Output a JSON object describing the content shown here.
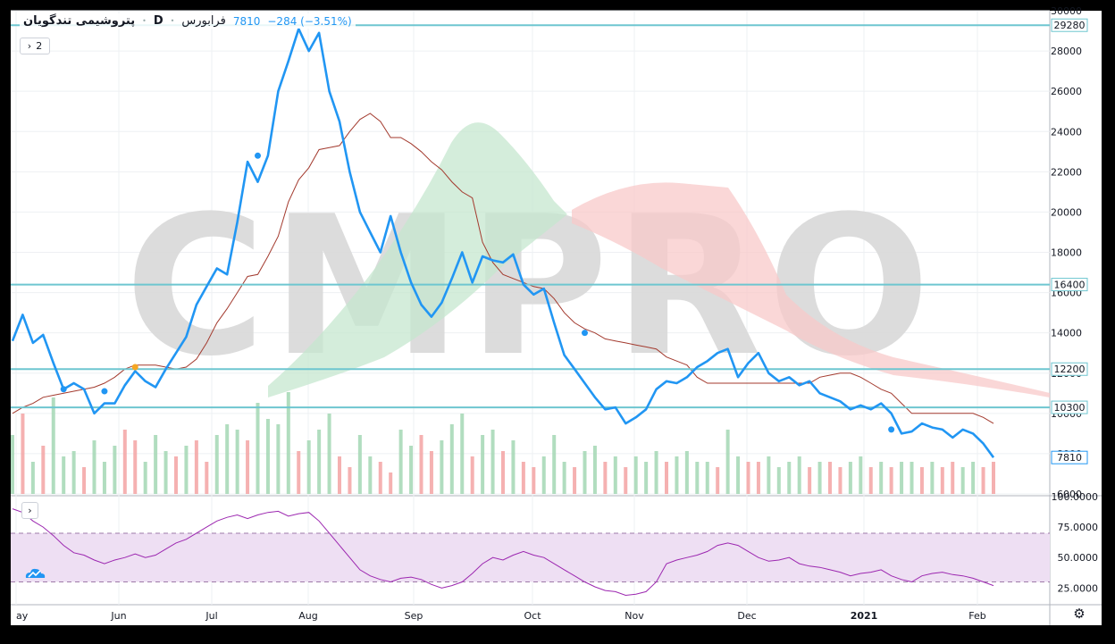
{
  "legend": {
    "symbol": "پتروشیمی تندگویان",
    "interval": "D",
    "exchange": "فرابورس",
    "last": "7810",
    "change": "−284 (−3.51%)"
  },
  "panes": {
    "main_legend_count": "2"
  },
  "watermark": "CMPRO",
  "colors": {
    "price_line": "#2196f3",
    "hline": "#6ec6d0",
    "baseline": "#a33a2e",
    "cloud_bull": "#c6e7cf",
    "cloud_bear": "#f8c9c9",
    "vol_up": "#a8d9b8",
    "vol_down": "#f4a9a9",
    "rsi_line": "#9c27b0",
    "rsi_band": "#eedff3",
    "marker_gold": "#f5a623",
    "watermark": "#d9d9d9",
    "bg": "#ffffff",
    "frame": "#000000"
  },
  "chart_data": [
    {
      "type": "line",
      "title": "",
      "x_ticks": [
        "ay",
        "Jun",
        "Jul",
        "Aug",
        "Sep",
        "Oct",
        "Nov",
        "Dec",
        "2021",
        "Feb"
      ],
      "y_ticks": [
        6000,
        8000,
        10000,
        12000,
        14000,
        16000,
        18000,
        20000,
        22000,
        24000,
        26000,
        28000,
        30000
      ],
      "ylim": [
        6000,
        30000
      ],
      "price_labels": [
        {
          "value": 29280,
          "label": "29280"
        },
        {
          "value": 16400,
          "label": "16400"
        },
        {
          "value": 12200,
          "label": "12200"
        },
        {
          "value": 10300,
          "label": "10300"
        },
        {
          "value": 7810,
          "label": "7810"
        }
      ],
      "horizontal_lines": [
        29280,
        16400,
        12200,
        10300
      ],
      "series": [
        {
          "style": "close",
          "values": [
            13600,
            14900,
            13500,
            13900,
            12500,
            11200,
            11500,
            11200,
            10000,
            10500,
            10500,
            11400,
            12100,
            11600,
            11300,
            12200,
            13000,
            13800,
            15400,
            16300,
            17200,
            16900,
            19500,
            22500,
            21500,
            22800,
            26000,
            27500,
            29100,
            28000,
            28900,
            26000,
            24500,
            22000,
            20000,
            19000,
            18000,
            19800,
            18000,
            16500,
            15400,
            14800,
            15500,
            16700,
            18000,
            16500,
            17800,
            17600,
            17500,
            17900,
            16400,
            15900,
            16200,
            14500,
            12900,
            12200,
            11500,
            10800,
            10200,
            10300,
            9500,
            9800,
            10200,
            11200,
            11600,
            11500,
            11800,
            12300,
            12600,
            13000,
            13200,
            11800,
            12500,
            13000,
            12000,
            11600,
            11800,
            11400,
            11600,
            11000,
            10800,
            10600,
            10200,
            10400,
            10200,
            10500,
            10000,
            9000,
            9100,
            9500,
            9300,
            9200,
            8800,
            9200,
            9000,
            8500,
            7810
          ]
        },
        {
          "style": "baseline",
          "values": [
            10000,
            10300,
            10500,
            10800,
            10900,
            11000,
            11100,
            11200,
            11300,
            11500,
            11800,
            12200,
            12400,
            12400,
            12400,
            12300,
            12200,
            12300,
            12700,
            13500,
            14500,
            15200,
            16000,
            16800,
            16900,
            17800,
            18800,
            20500,
            21600,
            22200,
            23100,
            23200,
            23300,
            24000,
            24600,
            24900,
            24500,
            23700,
            23700,
            23400,
            23000,
            22500,
            22100,
            21500,
            21000,
            20700,
            18500,
            17500,
            16900,
            16700,
            16500,
            16300,
            16200,
            15700,
            15000,
            14500,
            14200,
            14000,
            13700,
            13600,
            13500,
            13400,
            13300,
            13200,
            12800,
            12600,
            12400,
            11800,
            11500,
            11500,
            11500,
            11500,
            11500,
            11500,
            11500,
            11500,
            11500,
            11500,
            11500,
            11800,
            11900,
            12000,
            12000,
            11800,
            11500,
            11200,
            11000,
            10500,
            10000,
            10000,
            10000,
            10000,
            10000,
            10000,
            10000,
            9800,
            9500
          ]
        }
      ],
      "markers": [
        {
          "x_index": 5,
          "value": 11200
        },
        {
          "x_index": 9,
          "value": 11100
        },
        {
          "x_index": 12,
          "value": 12300
        },
        {
          "x_index": 24,
          "value": 22800
        },
        {
          "x_index": 56,
          "value": 14000
        },
        {
          "x_index": 86,
          "value": 9200
        }
      ],
      "volume": {
        "up": [
          1,
          0,
          1,
          0,
          1,
          1,
          1,
          0,
          1,
          1,
          1,
          0,
          0,
          1,
          1,
          1,
          0,
          1,
          0,
          0,
          1,
          1,
          1,
          0,
          1,
          1,
          1,
          1,
          0,
          1,
          1,
          1,
          0,
          0,
          1,
          1,
          0,
          0,
          1,
          1,
          0,
          0,
          1,
          1,
          1,
          0,
          1,
          1,
          0,
          1,
          0,
          0,
          1,
          1,
          1,
          0,
          1,
          1,
          0,
          1,
          0,
          1,
          1,
          1,
          0,
          1,
          1,
          1,
          1,
          0,
          1,
          1,
          0,
          0,
          1,
          1,
          1,
          1,
          0,
          1,
          0,
          0,
          1,
          1,
          0,
          1,
          0,
          1,
          1,
          0,
          1,
          0,
          0,
          1,
          1,
          0,
          0
        ],
        "vol": [
          0.55,
          0.75,
          0.3,
          0.45,
          0.9,
          0.35,
          0.4,
          0.25,
          0.5,
          0.3,
          0.45,
          0.6,
          0.5,
          0.3,
          0.55,
          0.4,
          0.35,
          0.45,
          0.5,
          0.3,
          0.55,
          0.65,
          0.6,
          0.5,
          0.85,
          0.7,
          0.65,
          0.95,
          0.4,
          0.5,
          0.6,
          0.75,
          0.35,
          0.25,
          0.55,
          0.35,
          0.3,
          0.2,
          0.6,
          0.45,
          0.55,
          0.4,
          0.5,
          0.65,
          0.75,
          0.35,
          0.55,
          0.6,
          0.4,
          0.5,
          0.3,
          0.25,
          0.35,
          0.55,
          0.3,
          0.25,
          0.4,
          0.45,
          0.3,
          0.35,
          0.25,
          0.35,
          0.3,
          0.4,
          0.3,
          0.35,
          0.4,
          0.3,
          0.3,
          0.25,
          0.6,
          0.35,
          0.3,
          0.3,
          0.35,
          0.25,
          0.3,
          0.35,
          0.25,
          0.3,
          0.3,
          0.25,
          0.3,
          0.35,
          0.25,
          0.3,
          0.25,
          0.3,
          0.3,
          0.25,
          0.3,
          0.25,
          0.3,
          0.25,
          0.3,
          0.25,
          0.3
        ]
      }
    },
    {
      "type": "line",
      "title": "",
      "y_ticks": [
        25,
        50,
        75,
        100
      ],
      "y_tick_labels": [
        "25.0000",
        "50.0000",
        "75.0000",
        "100.0000"
      ],
      "ylim": [
        15,
        100
      ],
      "bands": [
        30,
        70
      ],
      "series": [
        {
          "style": "rsi",
          "values": [
            90,
            87,
            80,
            75,
            68,
            60,
            54,
            52,
            48,
            45,
            48,
            50,
            53,
            50,
            52,
            57,
            62,
            65,
            70,
            75,
            80,
            83,
            85,
            82,
            85,
            87,
            88,
            84,
            86,
            87,
            80,
            70,
            60,
            50,
            40,
            35,
            32,
            30,
            33,
            34,
            32,
            28,
            25,
            27,
            30,
            37,
            45,
            50,
            48,
            52,
            55,
            52,
            50,
            45,
            40,
            35,
            30,
            26,
            23,
            22,
            19,
            20,
            22,
            30,
            45,
            48,
            50,
            52,
            55,
            60,
            62,
            60,
            55,
            50,
            47,
            48,
            50,
            45,
            43,
            42,
            40,
            38,
            35,
            37,
            38,
            40,
            35,
            32,
            30,
            35,
            37,
            38,
            36,
            35,
            33,
            30,
            27
          ]
        }
      ]
    }
  ]
}
